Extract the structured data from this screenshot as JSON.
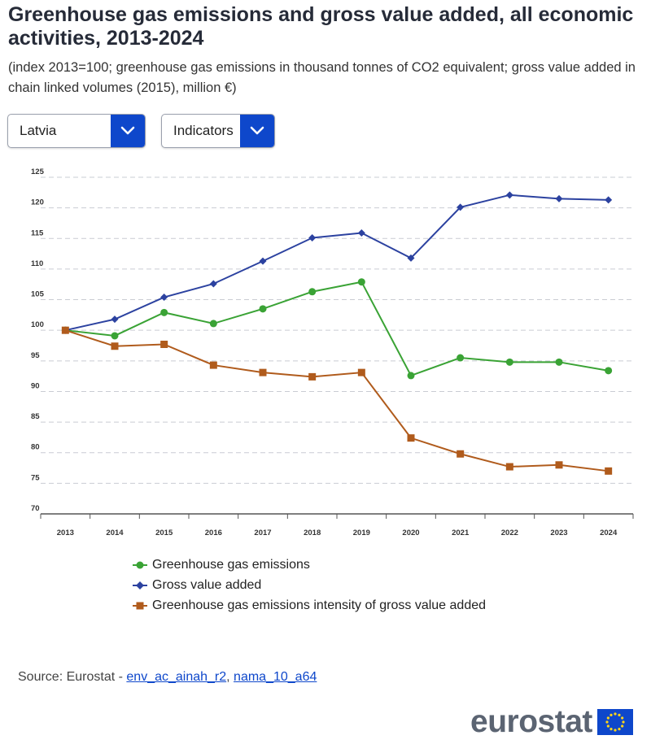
{
  "title": "Greenhouse gas emissions and gross value added, all economic activities, 2013-2024",
  "subtitle": "(index 2013=100; greenhouse gas emissions in thousand tonnes of CO2 equivalent; gross value added in chain linked volumes (2015), million €)",
  "dropdowns": {
    "country": "Latvia",
    "indicators": "Indicators"
  },
  "source": {
    "prefix": "Source: Eurostat - ",
    "link1": "env_ac_ainah_r2",
    "separator": ", ",
    "link2": "nama_10_a64"
  },
  "logo": {
    "text": "eurostat"
  },
  "colors": {
    "ghg": "#3aa335",
    "gva": "#2c42a0",
    "intensity": "#b05b1c",
    "accent": "#0e47cb"
  },
  "chart_data": {
    "type": "line",
    "x": [
      "2013",
      "2014",
      "2015",
      "2016",
      "2017",
      "2018",
      "2019",
      "2020",
      "2021",
      "2022",
      "2023",
      "2024"
    ],
    "ylim": [
      70,
      125
    ],
    "yticks": [
      70,
      75,
      80,
      85,
      90,
      95,
      100,
      105,
      110,
      115,
      120,
      125
    ],
    "grid": true,
    "legend_position": "bottom",
    "series": [
      {
        "name": "Greenhouse gas emissions",
        "marker": "circle",
        "color": "#3aa335",
        "values": [
          100,
          99.1,
          102.9,
          101.1,
          103.5,
          106.3,
          107.9,
          92.6,
          95.5,
          94.8,
          94.8,
          93.4
        ]
      },
      {
        "name": "Gross value added",
        "marker": "diamond",
        "color": "#2c42a0",
        "values": [
          100,
          101.8,
          105.4,
          107.6,
          111.3,
          115.1,
          115.9,
          111.8,
          120.1,
          122.1,
          121.5,
          121.3
        ]
      },
      {
        "name": "Greenhouse gas emissions intensity of gross value added",
        "marker": "square",
        "color": "#b05b1c",
        "values": [
          100,
          97.4,
          97.7,
          94.3,
          93.1,
          92.4,
          93.1,
          82.4,
          79.8,
          77.7,
          78.0,
          77.0
        ]
      }
    ]
  }
}
